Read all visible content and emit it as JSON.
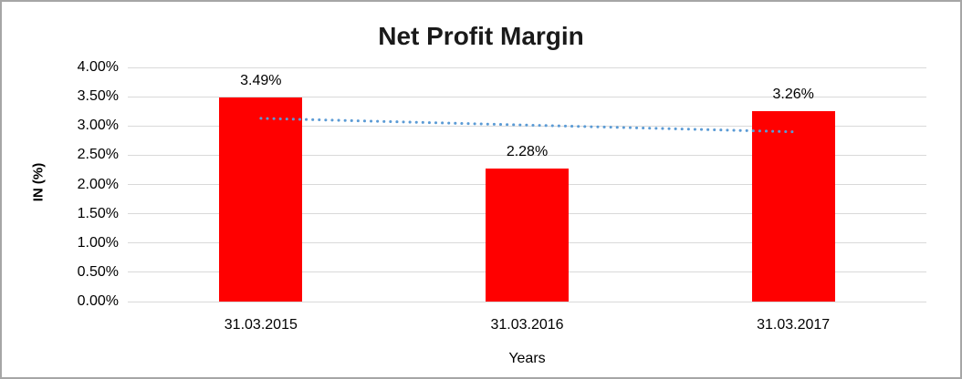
{
  "window": {
    "background": "#FFFFFF",
    "border_color": "#A6A6A6"
  },
  "chart_data": {
    "type": "bar",
    "title": "Net Profit Margin",
    "xlabel": "Years",
    "ylabel": "IN (%)",
    "categories": [
      "31.03.2015",
      "31.03.2016",
      "31.03.2017"
    ],
    "values": [
      3.49,
      2.28,
      3.26
    ],
    "data_labels": [
      "3.49%",
      "2.28%",
      "3.26%"
    ],
    "bar_color": "#FF0000",
    "ylim": [
      0,
      4
    ],
    "ytick_step": 0.5,
    "yticks": [
      {
        "value": 0.0,
        "label": "0.00%"
      },
      {
        "value": 0.5,
        "label": "0.50%"
      },
      {
        "value": 1.0,
        "label": "1.00%"
      },
      {
        "value": 1.5,
        "label": "1.50%"
      },
      {
        "value": 2.0,
        "label": "2.00%"
      },
      {
        "value": 2.5,
        "label": "2.50%"
      },
      {
        "value": 3.0,
        "label": "3.00%"
      },
      {
        "value": 3.5,
        "label": "3.50%"
      },
      {
        "value": 4.0,
        "label": "4.00%"
      }
    ],
    "gridlines": true,
    "gridline_color": "#D9D9D9",
    "legend": "none",
    "trendline": {
      "style": "dotted",
      "color": "#5B9BD5",
      "start_value": 3.13,
      "end_value": 2.9
    }
  }
}
